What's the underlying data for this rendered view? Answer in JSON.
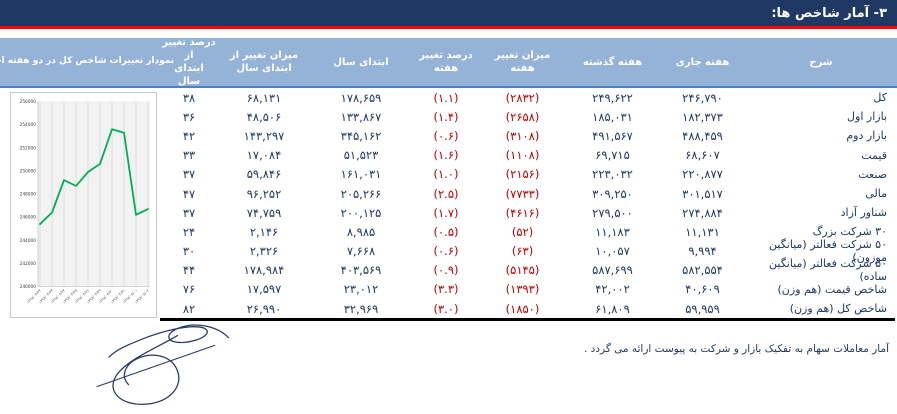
{
  "title": "۳- آمار شاخص ها:",
  "colors": {
    "title_bar_bg": "#1F3864",
    "red_rule": "#FE0000",
    "table_header_bg": "#95B3D7",
    "header_underline": "#4F81BD",
    "value_text": "#1F3864",
    "negative_text": "#C00000",
    "chart_line": "#00B050"
  },
  "table": {
    "headers": [
      "شرح",
      "هفته جاری",
      "هفته گذشته",
      "میزان تغییر هفته",
      "درصد تغییر هفته",
      "ابتدای سال",
      "میزان تغییر از\nابتدای سال",
      "درصد تغییر از\nابتدای سال",
      "نمودار تغییرات شاخص کل در دو هفته اخیر"
    ],
    "columns": [
      "شرح",
      "هفته جاری",
      "هفته گذشته",
      "میزان تغییر هفته",
      "درصد تغییر هفته",
      "ابتدای سال",
      "میزان تغییر از ابتدای سال",
      "درصد تغییر از ابتدای سال"
    ],
    "rows": [
      [
        "کل",
        "۲۴۶,۷۹۰",
        "۲۴۹,۶۲۲",
        "(۲۸۳۲)",
        "(۱.۱)",
        "۱۷۸,۶۵۹",
        "۶۸,۱۳۱",
        "۳۸"
      ],
      [
        "بازار اول",
        "۱۸۲,۳۷۳",
        "۱۸۵,۰۳۱",
        "(۲۶۵۸)",
        "(۱.۴)",
        "۱۳۳,۸۶۷",
        "۴۸,۵۰۶",
        "۳۶"
      ],
      [
        "بازار دوم",
        "۴۸۸,۴۵۹",
        "۴۹۱,۵۶۷",
        "(۳۱۰۸)",
        "(۰.۶)",
        "۳۴۵,۱۶۲",
        "۱۴۳,۲۹۷",
        "۴۲"
      ],
      [
        "قیمت",
        "۶۸,۶۰۷",
        "۶۹,۷۱۵",
        "(۱۱۰۸)",
        "(۱.۶)",
        "۵۱,۵۲۳",
        "۱۷,۰۸۴",
        "۳۳"
      ],
      [
        "صنعت",
        "۲۲۰,۸۷۷",
        "۲۲۳,۰۳۲",
        "(۲۱۵۶)",
        "(۱.۰)",
        "۱۶۱,۰۳۱",
        "۵۹,۸۴۶",
        "۳۷"
      ],
      [
        "مالی",
        "۳۰۱,۵۱۷",
        "۳۰۹,۲۵۰",
        "(۷۷۳۳)",
        "(۲.۵)",
        "۲۰۵,۲۶۶",
        "۹۶,۲۵۲",
        "۴۷"
      ],
      [
        "شناور آزاد",
        "۲۷۴,۸۸۴",
        "۲۷۹,۵۰۰",
        "(۴۶۱۶)",
        "(۱.۷)",
        "۲۰۰,۱۲۵",
        "۷۴,۷۵۹",
        "۳۷"
      ],
      [
        "۳۰ شرکت بزرگ",
        "۱۱,۱۳۱",
        "۱۱,۱۸۳",
        "(۵۲)",
        "(۰.۵)",
        "۸,۹۸۵",
        "۲,۱۴۶",
        "۲۴"
      ],
      [
        "۵۰ شرکت فعالتر (میانگین موزون)",
        "۹,۹۹۴",
        "۱۰,۰۵۷",
        "(۶۳)",
        "(۰.۶)",
        "۷,۶۶۸",
        "۲,۳۲۶",
        "۳۰"
      ],
      [
        "۵۰ شرکت فعالتر (میانگین ساده)",
        "۵۸۲,۵۵۴",
        "۵۸۷,۶۹۹",
        "(۵۱۴۵)",
        "(۰.۹)",
        "۴۰۳,۵۶۹",
        "۱۷۸,۹۸۴",
        "۴۴"
      ],
      [
        "شاخص قیمت (هم وزن)",
        "۴۰,۶۰۹",
        "۴۲,۰۰۲",
        "(۱۳۹۳)",
        "(۳.۳)",
        "۲۳,۰۱۲",
        "۱۷,۵۹۷",
        "۷۶"
      ],
      [
        "شاخص کل (هم وزن)",
        "۵۹,۹۵۹",
        "۶۱,۸۰۹",
        "(۱۸۵۰)",
        "(۳.۰)",
        "۳۲,۹۶۹",
        "۲۶,۹۹۰",
        "۸۲"
      ]
    ]
  },
  "chart_data": {
    "type": "line",
    "title": "نمودار تغییرات شاخص کل در دو هفته اخیر",
    "x": [
      "۱۳۹۸/۰۴/۲۲",
      "۱۳۹۸/۰۴/۲۳",
      "۱۳۹۸/۰۴/۲۴",
      "۱۳۹۸/۰۴/۲۵",
      "۱۳۹۸/۰۴/۲۶",
      "۱۳۹۸/۰۴/۲۹",
      "۱۳۹۸/۰۴/۳۰",
      "۱۳۹۸/۰۴/۳۱",
      "۱۳۹۸/۰۵/۰۱",
      "۱۳۹۸/۰۵/۰۲"
    ],
    "values": [
      245400,
      246400,
      249200,
      248700,
      249900,
      250600,
      253600,
      253300,
      246200,
      246700
    ],
    "ylim": [
      240000,
      256000
    ],
    "ytick_step": 2000,
    "grid": "vertical-only",
    "legend": "none",
    "line_color": "#00B050"
  },
  "footnote": "آمار معاملات سهام به تفکیک بازار و شرکت به پیوست ارائه می گردد ."
}
